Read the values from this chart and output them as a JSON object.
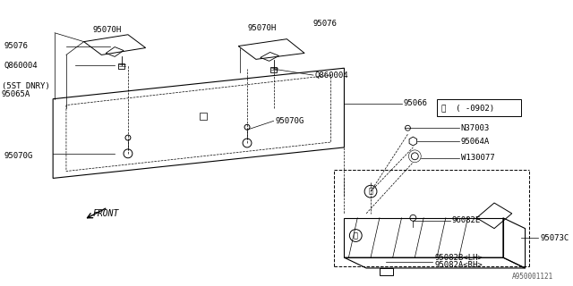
{
  "bg_color": "#ffffff",
  "line_color": "#000000",
  "fig_width": 6.4,
  "fig_height": 3.2,
  "dpi": 100,
  "watermark": "A950001121",
  "labels": {
    "95082A_RH": "95082A<RH>",
    "95082B_LH": "95082B<LH>",
    "96082E": "96082E",
    "95073C": "95073C",
    "W130077": "W130077",
    "95064A": "95064A",
    "N37003": "N37003",
    "95066": "95066",
    "95070G_left": "95070G",
    "95070G_center": "95070G",
    "95065A": "95065A",
    "5ST_DNRY": "(5ST DNRY)",
    "Q860004_left": "Q860004",
    "Q860004_center": "Q860004",
    "95076_left": "95076",
    "95076_center": "95076",
    "95070H_left": "95070H",
    "95070H_center": "95070H",
    "FRONT": "FRONT",
    "callout1": "①",
    "callout1b": "①  ( -0902)"
  },
  "font_size": 6.5
}
